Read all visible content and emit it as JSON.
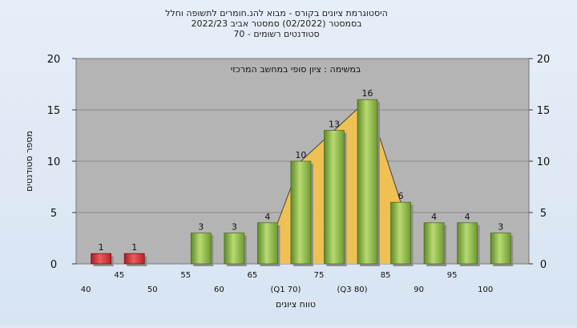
{
  "chart_data": {
    "type": "bar",
    "title_lines": [
      "היסטוגרמת ציונים בקורס - מבוא להנ.חומרים לתשופה וחלל",
      "בסמסטר  (02/2022)  סמסטר אביב 2022/23",
      "סטודנטים רשומים - 70"
    ],
    "subtitle": "במשימה : ציון סופי במחשב המרכזי",
    "xlabel": "טווח ציונים",
    "ylabel": "מספר סטודנטים",
    "ylim": [
      0,
      20
    ],
    "yticks": [
      "0",
      "5",
      "10",
      "15",
      "20"
    ],
    "categories": [
      "40",
      "45",
      "50",
      "55",
      "60",
      "65",
      "(Q1 70)",
      "75",
      "(Q3 80)",
      "85",
      "90",
      "95",
      "100"
    ],
    "values": [
      1,
      1,
      0,
      3,
      3,
      4,
      10,
      13,
      16,
      6,
      4,
      4,
      3
    ],
    "value_labels": [
      "1",
      "1",
      "",
      "3",
      "3",
      "4",
      "10",
      "13",
      "16",
      "6",
      "4",
      "4",
      "3"
    ],
    "bar_colors": [
      "#d4262b",
      "#d4262b",
      "#d4262b",
      "#8db84a",
      "#8db84a",
      "#8db84a",
      "#8db84a",
      "#8db84a",
      "#8db84a",
      "#8db84a",
      "#8db84a",
      "#8db84a",
      "#8db84a"
    ],
    "quartile_band": {
      "from": "(Q1 70)",
      "to": "(Q3 80)",
      "color": "#f5c24a"
    },
    "grid": true,
    "colors": {
      "plot_bg": "#b4b4b4",
      "grid": "#8a8a8a",
      "fail": "#d4262b",
      "pass": "#8db84a"
    }
  }
}
